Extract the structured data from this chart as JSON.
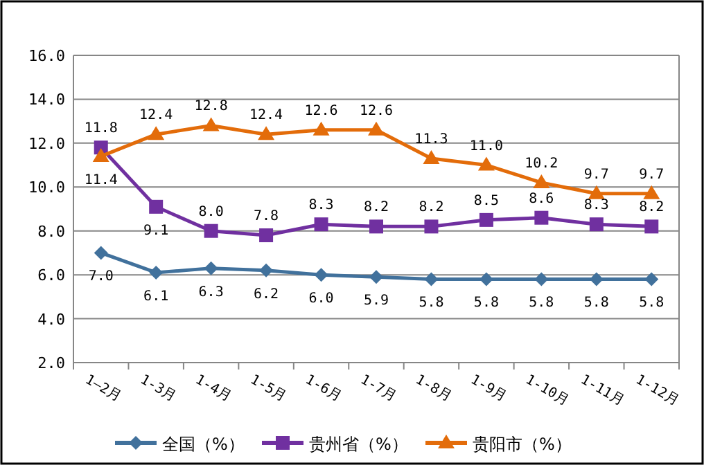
{
  "chart_data": {
    "type": "line",
    "categories": [
      "1—2月",
      "1-3月",
      "1-4月",
      "1-5月",
      "1-6月",
      "1-7月",
      "1-8月",
      "1-9月",
      "1-10月",
      "1-11月",
      "1-12月"
    ],
    "series": [
      {
        "name": "全国（%）",
        "color": "#41719c",
        "marker": "diamond",
        "values": [
          7.0,
          6.1,
          6.3,
          6.2,
          6.0,
          5.9,
          5.8,
          5.8,
          5.8,
          5.8,
          5.8
        ],
        "value_labels": [
          "7.0",
          "6.1",
          "6.3",
          "6.2",
          "6.0",
          "5.9",
          "5.8",
          "5.8",
          "5.8",
          "5.8",
          "5.8"
        ]
      },
      {
        "name": "贵州省（%）",
        "color": "#7030a0",
        "marker": "square",
        "values": [
          11.8,
          9.1,
          8.0,
          7.8,
          8.3,
          8.2,
          8.2,
          8.5,
          8.6,
          8.3,
          8.2
        ],
        "value_labels": [
          "11.8",
          "9.1",
          "8.0",
          "7.8",
          "8.3",
          "8.2",
          "8.2",
          "8.5",
          "8.6",
          "8.3",
          "8.2"
        ]
      },
      {
        "name": "贵阳市（%）",
        "color": "#e36c0a",
        "marker": "triangle",
        "values": [
          11.4,
          12.4,
          12.8,
          12.4,
          12.6,
          12.6,
          11.3,
          11.0,
          10.2,
          9.7,
          9.7
        ],
        "value_labels": [
          "11.4",
          "12.4",
          "12.8",
          "12.4",
          "12.6",
          "12.6",
          "11.3",
          "11.0",
          "10.2",
          "9.7",
          "9.7"
        ]
      }
    ],
    "ylim": [
      2,
      16
    ],
    "yticks": [
      {
        "value": 2,
        "label": "2.0"
      },
      {
        "value": 4,
        "label": "4.0"
      },
      {
        "value": 6,
        "label": "6.0"
      },
      {
        "value": 8,
        "label": "8.0"
      },
      {
        "value": 10,
        "label": "10.0"
      },
      {
        "value": 12,
        "label": "12.0"
      },
      {
        "value": 14,
        "label": "14.0"
      },
      {
        "value": 16,
        "label": "16.0"
      }
    ],
    "grid": "y",
    "legend": "bottom"
  }
}
